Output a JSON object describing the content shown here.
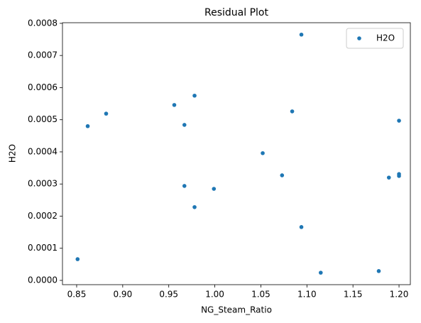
{
  "chart_data": {
    "type": "scatter",
    "title": "Residual Plot",
    "x_label": "NG_Steam_Ratio",
    "y_label": "H2O",
    "series": [
      {
        "name": "H2O",
        "color": "#1f77b4",
        "x": [
          0.851,
          0.862,
          0.882,
          0.956,
          0.967,
          0.967,
          0.978,
          0.978,
          0.999,
          1.052,
          1.073,
          1.084,
          1.094,
          1.094,
          1.115,
          1.178,
          1.189,
          1.2,
          1.2,
          1.2
        ],
        "values": [
          6.6e-05,
          0.00048,
          0.000519,
          0.000546,
          0.000484,
          0.000294,
          0.000575,
          0.000228,
          0.000285,
          0.000396,
          0.000327,
          0.000526,
          0.000765,
          0.000166,
          2.4e-05,
          2.9e-05,
          0.00032,
          0.000497,
          0.000331,
          0.000325
        ]
      }
    ],
    "xlim": [
      0.8346,
      1.2123
    ],
    "xticks": [
      0.85,
      {
        "value": 0.9,
        "label": "0.90"
      },
      0.95,
      {
        "value": 1.0,
        "label": "1.00"
      },
      1.05,
      {
        "value": 1.1,
        "label": "1.10"
      },
      1.15,
      {
        "value": 1.2,
        "label": "1.20"
      }
    ],
    "ylim": [
      -1.33e-05,
      0.000802
    ],
    "yticks": [
      {
        "value": 0,
        "label": "0.0000"
      },
      {
        "value": 0.0001,
        "label": "0.0001"
      },
      {
        "value": 0.0002,
        "label": "0.0002"
      },
      {
        "value": 0.0003,
        "label": "0.0003"
      },
      {
        "value": 0.0004,
        "label": "0.0004"
      },
      {
        "value": 0.0005,
        "label": "0.0005"
      },
      {
        "value": 0.0006,
        "label": "0.0006"
      },
      {
        "value": 0.0007,
        "label": "0.0007"
      },
      {
        "value": 0.0008,
        "label": "0.0008"
      }
    ],
    "legend": "upper right",
    "grid": false
  }
}
